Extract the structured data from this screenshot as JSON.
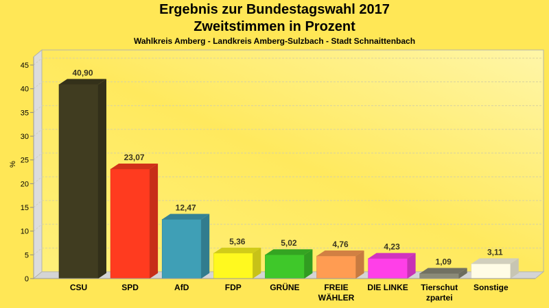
{
  "chart_data": {
    "type": "bar",
    "title": "Ergebnis zur Bundestagswahl 2017",
    "subtitle": "Zweitstimmen in Prozent",
    "subtitle2": "Wahlkreis Amberg - Landkreis Amberg-Sulzbach - Stadt Schnaittenbach",
    "xlabel": "",
    "ylabel": "%",
    "ylim": [
      0,
      45
    ],
    "yticks": [
      "0",
      "5",
      "10",
      "15",
      "20",
      "25",
      "30",
      "35",
      "40",
      "45"
    ],
    "grid": true,
    "categories": [
      [
        "CSU"
      ],
      [
        "SPD"
      ],
      [
        "AfD"
      ],
      [
        "FDP"
      ],
      [
        "GRÜNE"
      ],
      [
        "FREIE",
        "WÄHLER"
      ],
      [
        "DIE LINKE"
      ],
      [
        "Tierschut",
        "zpartei"
      ],
      [
        "Sonstige"
      ]
    ],
    "values": [
      40.9,
      23.07,
      12.47,
      5.36,
      5.02,
      4.76,
      4.23,
      1.09,
      3.11
    ],
    "value_labels": [
      "40,90",
      "23,07",
      "12,47",
      "5,36",
      "5,02",
      "4,76",
      "4,23",
      "1,09",
      "3,11"
    ],
    "colors": [
      "#403c20",
      "#ff3b1f",
      "#3f9fb6",
      "#fff91f",
      "#3fc82a",
      "#ff9c52",
      "#ff3fe8",
      "#8a8a78",
      "#fffce6"
    ]
  }
}
